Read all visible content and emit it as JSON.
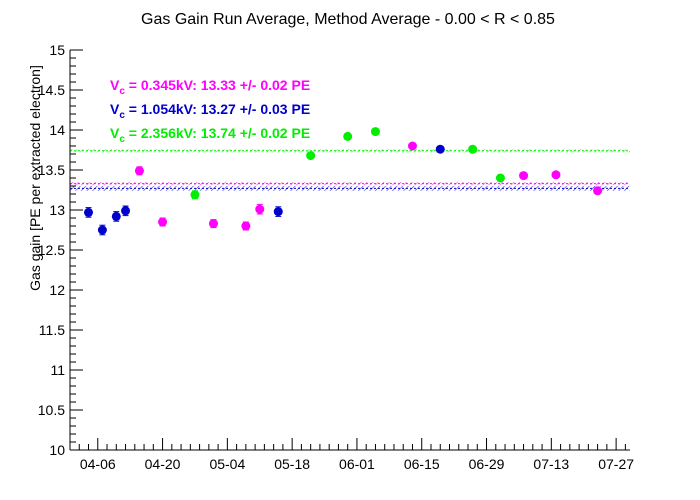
{
  "chart_data": {
    "type": "scatter",
    "title": "Gas Gain Run Average, Method Average - 0.00 < R < 0.85",
    "ylabel": "Gas gain [PE per extracted electron]",
    "xlabel": "",
    "x_axis": {
      "type": "date",
      "start": "2016-03-31",
      "end": "2016-07-30",
      "tick_labels": [
        "04-06",
        "04-20",
        "05-04",
        "05-18",
        "06-01",
        "06-15",
        "06-29",
        "07-13",
        "07-27"
      ]
    },
    "ylim": [
      10,
      15
    ],
    "y_ticks": [
      "10",
      "10.5",
      "11",
      "11.5",
      "12",
      "12.5",
      "13",
      "13.5",
      "14",
      "14.5",
      "15"
    ],
    "grid": false,
    "legend_position": "top-left",
    "series": [
      {
        "name": "V_c = 0.345kV: 13.33 +/- 0.02 PE",
        "legend_main": "V",
        "legend_sub": "c",
        "legend_rest": " = 0.345kV: 13.33 +/- 0.02 PE",
        "color": "#ff00ff",
        "mean": 13.33,
        "mean_err": 0.02,
        "points": [
          {
            "x": "2016-04-15",
            "y": 13.49,
            "err": 0.05
          },
          {
            "x": "2016-04-20",
            "y": 12.85,
            "err": 0.05
          },
          {
            "x": "2016-05-01",
            "y": 12.83,
            "err": 0.05
          },
          {
            "x": "2016-05-08",
            "y": 12.8,
            "err": 0.05
          },
          {
            "x": "2016-05-11",
            "y": 13.01,
            "err": 0.06
          },
          {
            "x": "2016-06-13",
            "y": 13.8,
            "err": 0.03
          },
          {
            "x": "2016-07-07",
            "y": 13.43,
            "err": 0.03
          },
          {
            "x": "2016-07-14",
            "y": 13.44,
            "err": 0.03
          },
          {
            "x": "2016-07-23",
            "y": 13.24,
            "err": 0.03
          }
        ]
      },
      {
        "name": "V_c = 1.054kV: 13.27 +/- 0.03 PE",
        "legend_main": "V",
        "legend_sub": "c",
        "legend_rest": " = 1.054kV: 13.27 +/- 0.03 PE",
        "color": "#0000cc",
        "mean": 13.27,
        "mean_err": 0.03,
        "points": [
          {
            "x": "2016-04-04",
            "y": 12.97,
            "err": 0.06
          },
          {
            "x": "2016-04-07",
            "y": 12.75,
            "err": 0.06
          },
          {
            "x": "2016-04-10",
            "y": 12.92,
            "err": 0.06
          },
          {
            "x": "2016-04-12",
            "y": 12.99,
            "err": 0.06
          },
          {
            "x": "2016-05-15",
            "y": 12.98,
            "err": 0.06
          },
          {
            "x": "2016-06-19",
            "y": 13.76,
            "err": 0.03
          }
        ]
      },
      {
        "name": "V_c = 2.356kV: 13.74 +/- 0.02 PE",
        "legend_main": "V",
        "legend_sub": "c",
        "legend_rest": " = 2.356kV: 13.74 +/- 0.02 PE",
        "color": "#00ee00",
        "mean": 13.74,
        "mean_err": 0.02,
        "points": [
          {
            "x": "2016-04-27",
            "y": 13.19,
            "err": 0.05
          },
          {
            "x": "2016-05-22",
            "y": 13.68,
            "err": 0.03
          },
          {
            "x": "2016-05-30",
            "y": 13.92,
            "err": 0.03
          },
          {
            "x": "2016-06-05",
            "y": 13.98,
            "err": 0.03
          },
          {
            "x": "2016-06-26",
            "y": 13.76,
            "err": 0.03
          },
          {
            "x": "2016-07-02",
            "y": 13.4,
            "err": 0.03
          }
        ]
      }
    ]
  }
}
